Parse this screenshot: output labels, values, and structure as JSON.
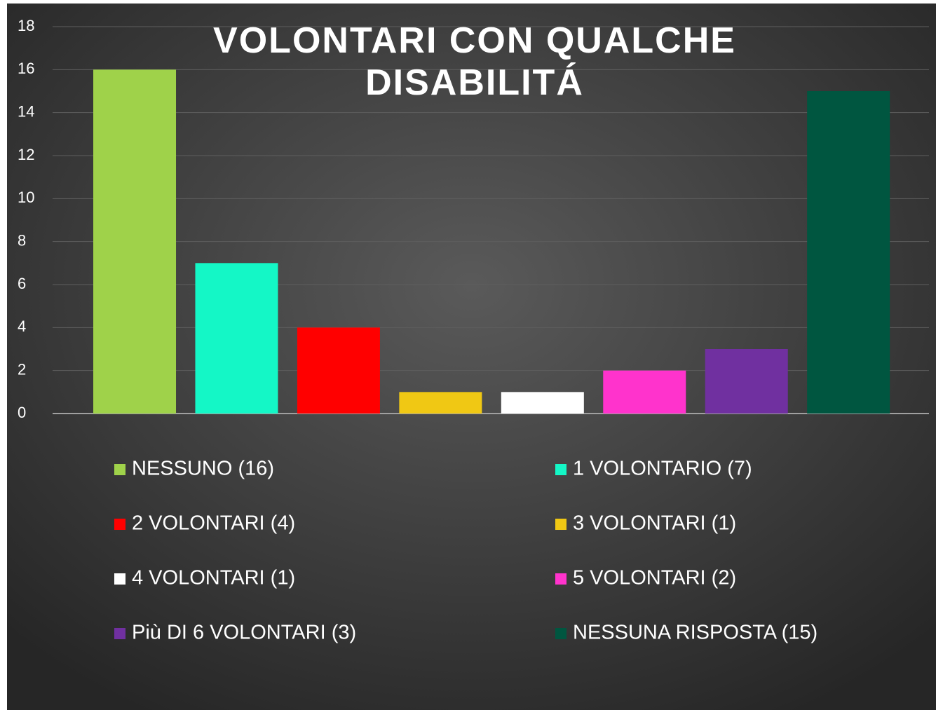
{
  "chart_data": {
    "type": "bar",
    "title": "VOLONTARI CON QUALCHE DISABILITÁ",
    "series": [
      {
        "name": "NESSUNO (16)",
        "color": "#9fd24a",
        "values": [
          16
        ]
      },
      {
        "name": "1 VOLONTARIO (7)",
        "color": "#14f7c6",
        "values": [
          7
        ]
      },
      {
        "name": "2 VOLONTARI (4)",
        "color": "#ff0000",
        "values": [
          4
        ]
      },
      {
        "name": "3 VOLONTARI (1)",
        "color": "#f0c814",
        "values": [
          1
        ]
      },
      {
        "name": "4 VOLONTARI (1)",
        "color": "#ffffff",
        "values": [
          1
        ]
      },
      {
        "name": "5 VOLONTARI (2)",
        "color": "#ff33cc",
        "values": [
          2
        ]
      },
      {
        "name": "Più DI  6 VOLONTARI (3)",
        "color": "#7030a0",
        "values": [
          3
        ]
      },
      {
        "name": "NESSUNA RISPOSTA (15)",
        "color": "#005640",
        "values": [
          15
        ]
      }
    ],
    "ylim": [
      0,
      18
    ],
    "yticks": [
      0,
      2,
      4,
      6,
      8,
      10,
      12,
      14,
      16,
      18
    ],
    "grid": true
  }
}
